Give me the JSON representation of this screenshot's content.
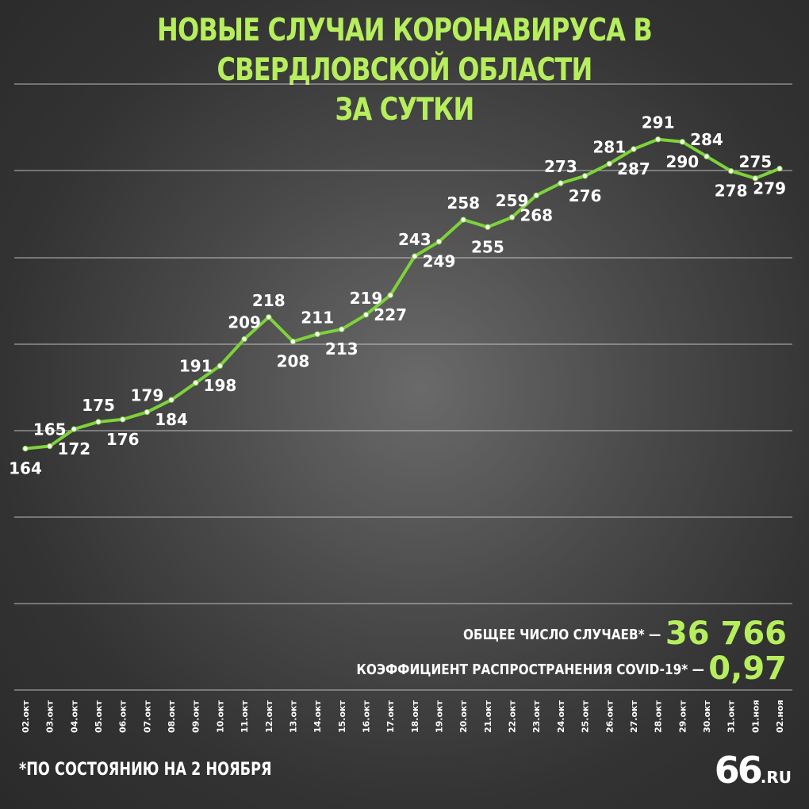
{
  "title_line1": "НОВЫЕ СЛУЧАИ КОРОНАВИРУСА В СВЕРДЛОВСКОЙ ОБЛАСТИ",
  "title_line2": "ЗА СУТКИ",
  "colors": {
    "accent": "#b6ee5e",
    "line": "#7dd33a",
    "text": "#ffffff",
    "grid": "#dddddd"
  },
  "stats": {
    "total_label": "ОБЩЕЕ ЧИСЛО СЛУЧАЕВ* —",
    "total_value": "36 766",
    "r_label": "КОЭФФИЦИЕНТ РАСПРОСТРАНЕНИЯ COVID-19* —",
    "r_value": "0,97"
  },
  "footnote": "*ПО СОСТОЯНИЮ НА 2 НОЯБРЯ",
  "logo": {
    "digits": "66",
    "suffix": ".RU"
  },
  "chart_data": {
    "type": "line",
    "title": "НОВЫЕ СЛУЧАИ КОРОНАВИРУСА В СВЕРДЛОВСКОЙ ОБЛАСТИ ЗА СУТКИ",
    "categories": [
      "02.окт",
      "03.окт",
      "04.окт",
      "05.окт",
      "06.окт",
      "07.окт",
      "08.окт",
      "09.окт",
      "10.окт",
      "11.окт",
      "12.окт",
      "13.окт",
      "14.окт",
      "15.окт",
      "16.окт",
      "17.окт",
      "18.окт",
      "19.окт",
      "20.окт",
      "21.окт",
      "22.окт",
      "23.окт",
      "24.окт",
      "25.окт",
      "26.окт",
      "27.окт",
      "28.окт",
      "29.окт",
      "30.окт",
      "31.окт",
      "01.ноя",
      "02.ноя"
    ],
    "values": [
      164,
      165,
      172,
      175,
      176,
      179,
      184,
      191,
      198,
      209,
      218,
      208,
      211,
      213,
      219,
      227,
      243,
      249,
      258,
      255,
      259,
      268,
      273,
      276,
      281,
      287,
      291,
      290,
      284,
      278,
      275,
      279
    ],
    "label_position": [
      "below",
      "above",
      "below",
      "above",
      "below",
      "above",
      "below",
      "above",
      "below",
      "above",
      "above",
      "below",
      "above",
      "below",
      "above",
      "below",
      "above",
      "below",
      "above",
      "below",
      "above",
      "below",
      "above",
      "below",
      "above",
      "below",
      "above",
      "below",
      "above",
      "below",
      "above",
      "below"
    ],
    "ylim": [
      130,
      340
    ],
    "grid": true,
    "xlabel": "",
    "ylabel": ""
  }
}
